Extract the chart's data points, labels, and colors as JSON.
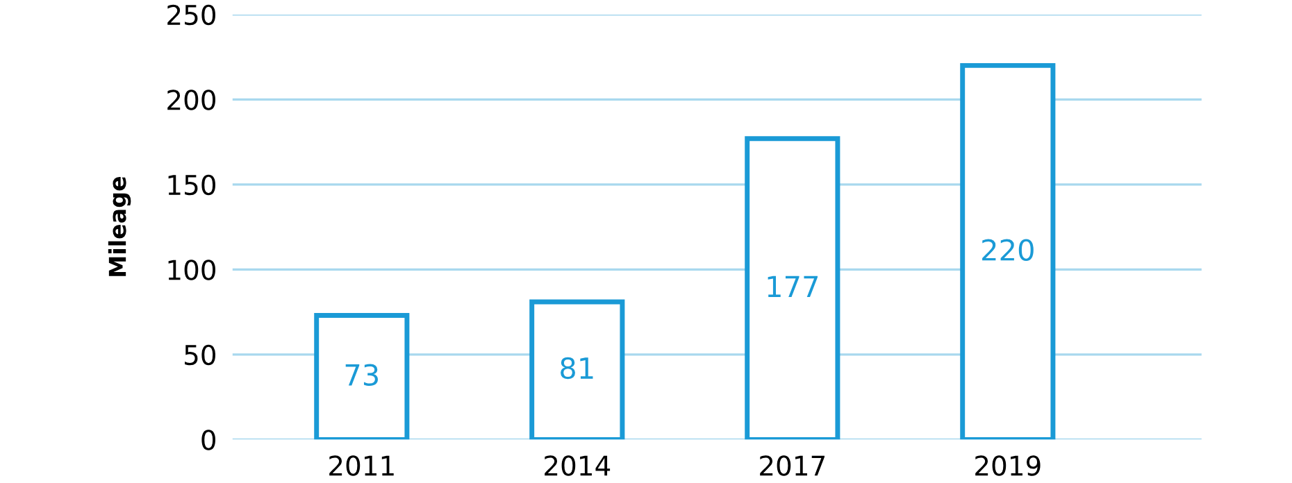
{
  "chart_data": {
    "type": "bar",
    "ylabel": "Mileage",
    "categories": [
      "2011",
      "2014",
      "2017",
      "2019"
    ],
    "values": [
      73,
      81,
      177,
      220
    ],
    "color": "#1a9ad6",
    "ylim": [
      0,
      250
    ],
    "yticks": [
      0,
      50,
      100,
      150,
      200,
      250
    ],
    "grid": "y",
    "data_labels": true
  }
}
